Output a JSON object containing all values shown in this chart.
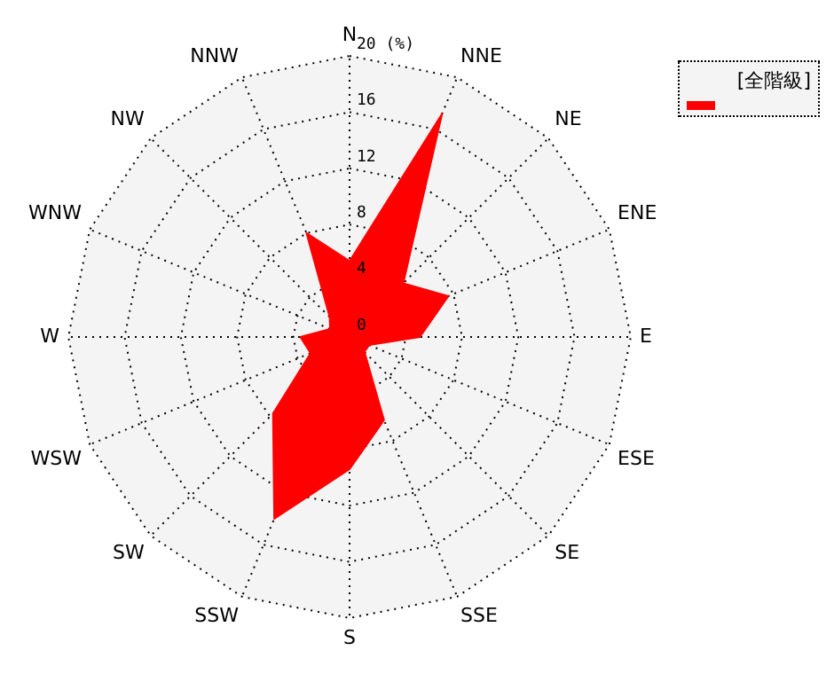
{
  "chart_data": {
    "type": "radar",
    "legend_title": "[全階級]",
    "grid": true,
    "marker": "none",
    "categories": [
      "N",
      "NNE",
      "NE",
      "ENE",
      "E",
      "ESE",
      "SE",
      "SSE",
      "S",
      "SSW",
      "SW",
      "WSW",
      "W",
      "WNW",
      "NW",
      "NNW"
    ],
    "ylim": [
      0,
      20
    ],
    "yticks": [
      0,
      4,
      8,
      12,
      16,
      {
        "value": 20,
        "label": "20 (%)"
      }
    ],
    "series": [
      {
        "color": "#ff0000",
        "values": [
          5.4,
          17.2,
          5.4,
          7.6,
          5.0,
          1.5,
          1.5,
          6.4,
          9.4,
          14.0,
          7.7,
          3.0,
          3.5,
          1.5,
          2.0,
          8.0
        ]
      }
    ]
  }
}
